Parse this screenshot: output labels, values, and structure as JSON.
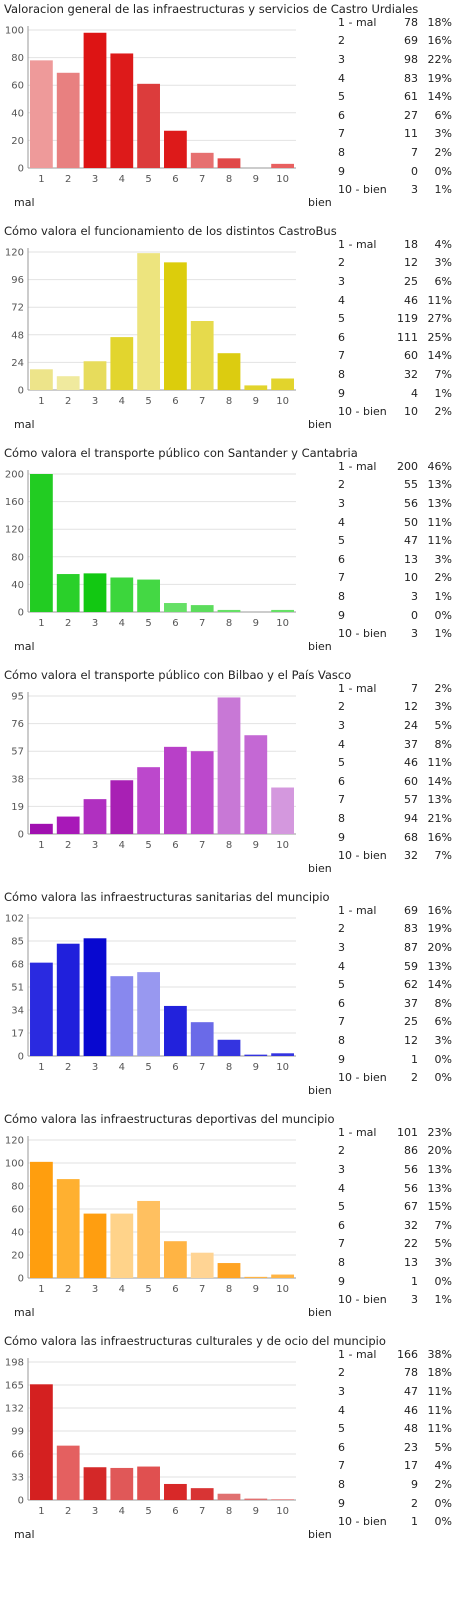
{
  "chart_data": [
    {
      "type": "bar",
      "title": "Valoracion general de las infraestructuras y servicios de Castro Urdiales",
      "categories": [
        "1",
        "2",
        "3",
        "4",
        "5",
        "6",
        "7",
        "8",
        "9",
        "10"
      ],
      "values": [
        78,
        69,
        98,
        83,
        61,
        27,
        11,
        7,
        0,
        3
      ],
      "ylim": [
        0,
        100
      ],
      "yticks": [
        "0",
        "20",
        "40",
        "60",
        "80",
        "100"
      ],
      "colors": [
        "#ee9a9a",
        "#e88080",
        "#dd1414",
        "#dd1a1a",
        "#dc3c3c",
        "#dd1a1a",
        "#e67070",
        "#e04848",
        "#e86060",
        "#e86060"
      ],
      "xlabel_left": "mal",
      "xlabel_right": "bien",
      "table": [
        {
          "k": "1 -   mal",
          "c": "78",
          "p": "18%"
        },
        {
          "k": "2",
          "c": "69",
          "p": "16%"
        },
        {
          "k": "3",
          "c": "98",
          "p": "22%"
        },
        {
          "k": "4",
          "c": "83",
          "p": "19%"
        },
        {
          "k": "5",
          "c": "61",
          "p": "14%"
        },
        {
          "k": "6",
          "c": "27",
          "p": "6%"
        },
        {
          "k": "7",
          "c": "11",
          "p": "3%"
        },
        {
          "k": "8",
          "c": "7",
          "p": "2%"
        },
        {
          "k": "9",
          "c": "0",
          "p": "0%"
        },
        {
          "k": "10 - bien",
          "c": "3",
          "p": "1%"
        }
      ]
    },
    {
      "type": "bar",
      "title": "Cómo valora el funcionamiento de los distintos CastroBus",
      "categories": [
        "1",
        "2",
        "3",
        "4",
        "5",
        "6",
        "7",
        "8",
        "9",
        "10"
      ],
      "values": [
        18,
        12,
        25,
        46,
        119,
        111,
        60,
        32,
        4,
        10
      ],
      "ylim": [
        0,
        120
      ],
      "yticks": [
        "0",
        "24",
        "48",
        "72",
        "96",
        "120"
      ],
      "colors": [
        "#ede48a",
        "#f0ea9e",
        "#e7dc5c",
        "#e2d52e",
        "#ede47e",
        "#dccd0c",
        "#e6da4c",
        "#dccc10",
        "#e2d42c",
        "#e2d42c"
      ],
      "xlabel_left": "mal",
      "xlabel_right": "bien",
      "table": [
        {
          "k": "1 -   mal",
          "c": "18",
          "p": "4%"
        },
        {
          "k": "2",
          "c": "12",
          "p": "3%"
        },
        {
          "k": "3",
          "c": "25",
          "p": "6%"
        },
        {
          "k": "4",
          "c": "46",
          "p": "11%"
        },
        {
          "k": "5",
          "c": "119",
          "p": "27%"
        },
        {
          "k": "6",
          "c": "111",
          "p": "25%"
        },
        {
          "k": "7",
          "c": "60",
          "p": "14%"
        },
        {
          "k": "8",
          "c": "32",
          "p": "7%"
        },
        {
          "k": "9",
          "c": "4",
          "p": "1%"
        },
        {
          "k": "10 - bien",
          "c": "10",
          "p": "2%"
        }
      ]
    },
    {
      "type": "bar",
      "title": "Cómo valora el transporte público con Santander y Cantabria",
      "categories": [
        "1",
        "2",
        "3",
        "4",
        "5",
        "6",
        "7",
        "8",
        "9",
        "10"
      ],
      "values": [
        200,
        55,
        56,
        50,
        47,
        13,
        10,
        3,
        0,
        3
      ],
      "ylim": [
        0,
        200
      ],
      "yticks": [
        "0",
        "40",
        "80",
        "120",
        "160",
        "200"
      ],
      "colors": [
        "#22cc22",
        "#2ad02a",
        "#12c812",
        "#3cd63c",
        "#44d844",
        "#66e066",
        "#5cdc5c",
        "#66e066",
        "#66e066",
        "#66e066"
      ],
      "xlabel_left": "mal",
      "xlabel_right": "bien",
      "table": [
        {
          "k": "1 -   mal",
          "c": "200",
          "p": "46%"
        },
        {
          "k": "2",
          "c": "55",
          "p": "13%"
        },
        {
          "k": "3",
          "c": "56",
          "p": "13%"
        },
        {
          "k": "4",
          "c": "50",
          "p": "11%"
        },
        {
          "k": "5",
          "c": "47",
          "p": "11%"
        },
        {
          "k": "6",
          "c": "13",
          "p": "3%"
        },
        {
          "k": "7",
          "c": "10",
          "p": "2%"
        },
        {
          "k": "8",
          "c": "3",
          "p": "1%"
        },
        {
          "k": "9",
          "c": "0",
          "p": "0%"
        },
        {
          "k": "10 - bien",
          "c": "3",
          "p": "1%"
        }
      ]
    },
    {
      "type": "bar",
      "title": "Cómo valora el transporte público con Bilbao y el País Vasco",
      "categories": [
        "1",
        "2",
        "3",
        "4",
        "5",
        "6",
        "7",
        "8",
        "9",
        "10"
      ],
      "values": [
        7,
        12,
        24,
        37,
        46,
        60,
        57,
        94,
        68,
        32
      ],
      "ylim": [
        0,
        95
      ],
      "yticks": [
        "0",
        "19",
        "38",
        "57",
        "76",
        "95"
      ],
      "colors": [
        "#a010b0",
        "#a818b8",
        "#b030c0",
        "#a820b4",
        "#bc48cc",
        "#b840c8",
        "#bc48cc",
        "#c878d6",
        "#c468d4",
        "#d498de"
      ],
      "xlabel_left": "",
      "xlabel_right": "bien",
      "table": [
        {
          "k": "1 -   mal",
          "c": "7",
          "p": "2%"
        },
        {
          "k": "2",
          "c": "12",
          "p": "3%"
        },
        {
          "k": "3",
          "c": "24",
          "p": "5%"
        },
        {
          "k": "4",
          "c": "37",
          "p": "8%"
        },
        {
          "k": "5",
          "c": "46",
          "p": "11%"
        },
        {
          "k": "6",
          "c": "60",
          "p": "14%"
        },
        {
          "k": "7",
          "c": "57",
          "p": "13%"
        },
        {
          "k": "8",
          "c": "94",
          "p": "21%"
        },
        {
          "k": "9",
          "c": "68",
          "p": "16%"
        },
        {
          "k": "10 - bien",
          "c": "32",
          "p": "7%"
        }
      ]
    },
    {
      "type": "bar",
      "title": "Cómo valora las infraestructuras sanitarias del muncipio",
      "categories": [
        "1",
        "2",
        "3",
        "4",
        "5",
        "6",
        "7",
        "8",
        "9",
        "10"
      ],
      "values": [
        69,
        83,
        87,
        59,
        62,
        37,
        25,
        12,
        1,
        2
      ],
      "ylim": [
        0,
        102
      ],
      "yticks": [
        "0",
        "17",
        "34",
        "51",
        "68",
        "85",
        "102"
      ],
      "colors": [
        "#2a2ae0",
        "#2020dc",
        "#0808d0",
        "#8888ee",
        "#9898f0",
        "#2222dc",
        "#6a6ae8",
        "#3434e0",
        "#3434e0",
        "#3434e0"
      ],
      "xlabel_left": "",
      "xlabel_right": "bien",
      "table": [
        {
          "k": "1 -   mal",
          "c": "69",
          "p": "16%"
        },
        {
          "k": "2",
          "c": "83",
          "p": "19%"
        },
        {
          "k": "3",
          "c": "87",
          "p": "20%"
        },
        {
          "k": "4",
          "c": "59",
          "p": "13%"
        },
        {
          "k": "5",
          "c": "62",
          "p": "14%"
        },
        {
          "k": "6",
          "c": "37",
          "p": "8%"
        },
        {
          "k": "7",
          "c": "25",
          "p": "6%"
        },
        {
          "k": "8",
          "c": "12",
          "p": "3%"
        },
        {
          "k": "9",
          "c": "1",
          "p": "0%"
        },
        {
          "k": "10 - bien",
          "c": "2",
          "p": "0%"
        }
      ]
    },
    {
      "type": "bar",
      "title": "Cómo valora las infraestructuras deportivas del muncipio",
      "categories": [
        "1",
        "2",
        "3",
        "4",
        "5",
        "6",
        "7",
        "8",
        "9",
        "10"
      ],
      "values": [
        101,
        86,
        56,
        56,
        67,
        32,
        22,
        13,
        1,
        3
      ],
      "ylim": [
        0,
        120
      ],
      "yticks": [
        "0",
        "20",
        "40",
        "60",
        "80",
        "100",
        "120"
      ],
      "colors": [
        "#ff9e0e",
        "#ffb030",
        "#ff9e10",
        "#ffd38a",
        "#ffc060",
        "#ffb444",
        "#ffd494",
        "#ffa424",
        "#ffb444",
        "#ffb444"
      ],
      "xlabel_left": "mal",
      "xlabel_right": "bien",
      "table": [
        {
          "k": "1 -   mal",
          "c": "101",
          "p": "23%"
        },
        {
          "k": "2",
          "c": "86",
          "p": "20%"
        },
        {
          "k": "3",
          "c": "56",
          "p": "13%"
        },
        {
          "k": "4",
          "c": "56",
          "p": "13%"
        },
        {
          "k": "5",
          "c": "67",
          "p": "15%"
        },
        {
          "k": "6",
          "c": "32",
          "p": "7%"
        },
        {
          "k": "7",
          "c": "22",
          "p": "5%"
        },
        {
          "k": "8",
          "c": "13",
          "p": "3%"
        },
        {
          "k": "9",
          "c": "1",
          "p": "0%"
        },
        {
          "k": "10 - bien",
          "c": "3",
          "p": "1%"
        }
      ]
    },
    {
      "type": "bar",
      "title": "Cómo valora las infraestructuras culturales y de ocio del muncipio",
      "categories": [
        "1",
        "2",
        "3",
        "4",
        "5",
        "6",
        "7",
        "8",
        "9",
        "10"
      ],
      "values": [
        166,
        78,
        47,
        46,
        48,
        23,
        17,
        9,
        2,
        1
      ],
      "ylim": [
        0,
        198
      ],
      "yticks": [
        "0",
        "33",
        "66",
        "99",
        "132",
        "165",
        "198"
      ],
      "colors": [
        "#d42020",
        "#e46060",
        "#d42828",
        "#e05858",
        "#e05050",
        "#d82828",
        "#d83434",
        "#e07070",
        "#e07070",
        "#e07070"
      ],
      "xlabel_left": "mal",
      "xlabel_right": "bien",
      "table": [
        {
          "k": "1 -   mal",
          "c": "166",
          "p": "38%"
        },
        {
          "k": "2",
          "c": "78",
          "p": "18%"
        },
        {
          "k": "3",
          "c": "47",
          "p": "11%"
        },
        {
          "k": "4",
          "c": "46",
          "p": "11%"
        },
        {
          "k": "5",
          "c": "48",
          "p": "11%"
        },
        {
          "k": "6",
          "c": "23",
          "p": "5%"
        },
        {
          "k": "7",
          "c": "17",
          "p": "4%"
        },
        {
          "k": "8",
          "c": "9",
          "p": "2%"
        },
        {
          "k": "9",
          "c": "2",
          "p": "0%"
        },
        {
          "k": "10 - bien",
          "c": "1",
          "p": "0%"
        }
      ]
    }
  ]
}
